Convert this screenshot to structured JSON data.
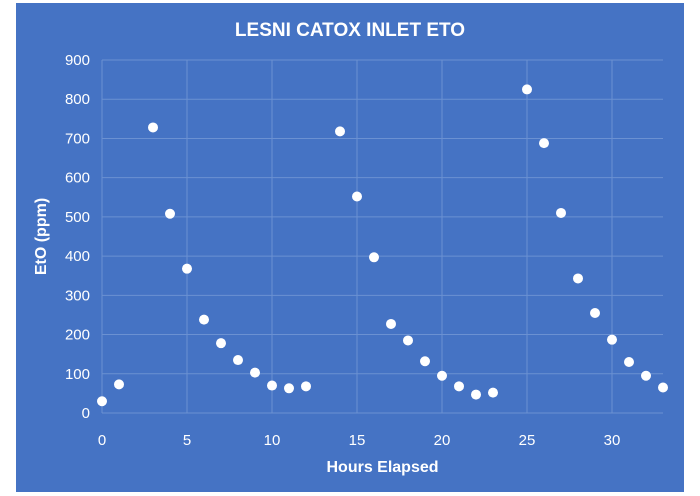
{
  "chart_data": {
    "type": "scatter",
    "title": "LESNI CATOX INLET ETO",
    "xlabel": "Hours Elapsed",
    "ylabel": "EtO (ppm)",
    "xlim": [
      0,
      33
    ],
    "ylim": [
      0,
      900
    ],
    "xticks": [
      0,
      5,
      10,
      15,
      20,
      25,
      30
    ],
    "yticks": [
      0,
      100,
      200,
      300,
      400,
      500,
      600,
      700,
      800,
      900
    ],
    "grid": "vertical and horizontal",
    "marker_color": "#FFFFFF",
    "background_color": "#4573C4",
    "points": [
      {
        "x": 0,
        "y": 30
      },
      {
        "x": 1,
        "y": 73
      },
      {
        "x": 3,
        "y": 728
      },
      {
        "x": 4,
        "y": 508
      },
      {
        "x": 5,
        "y": 368
      },
      {
        "x": 6,
        "y": 238
      },
      {
        "x": 7,
        "y": 178
      },
      {
        "x": 8,
        "y": 135
      },
      {
        "x": 9,
        "y": 103
      },
      {
        "x": 10,
        "y": 70
      },
      {
        "x": 11,
        "y": 63
      },
      {
        "x": 12,
        "y": 68
      },
      {
        "x": 14,
        "y": 718
      },
      {
        "x": 15,
        "y": 552
      },
      {
        "x": 16,
        "y": 397
      },
      {
        "x": 17,
        "y": 227
      },
      {
        "x": 18,
        "y": 185
      },
      {
        "x": 19,
        "y": 132
      },
      {
        "x": 20,
        "y": 95
      },
      {
        "x": 21,
        "y": 68
      },
      {
        "x": 22,
        "y": 47
      },
      {
        "x": 23,
        "y": 52
      },
      {
        "x": 25,
        "y": 825
      },
      {
        "x": 26,
        "y": 688
      },
      {
        "x": 27,
        "y": 510
      },
      {
        "x": 28,
        "y": 343
      },
      {
        "x": 29,
        "y": 255
      },
      {
        "x": 30,
        "y": 187
      },
      {
        "x": 31,
        "y": 130
      },
      {
        "x": 32,
        "y": 95
      },
      {
        "x": 33,
        "y": 65
      }
    ]
  }
}
